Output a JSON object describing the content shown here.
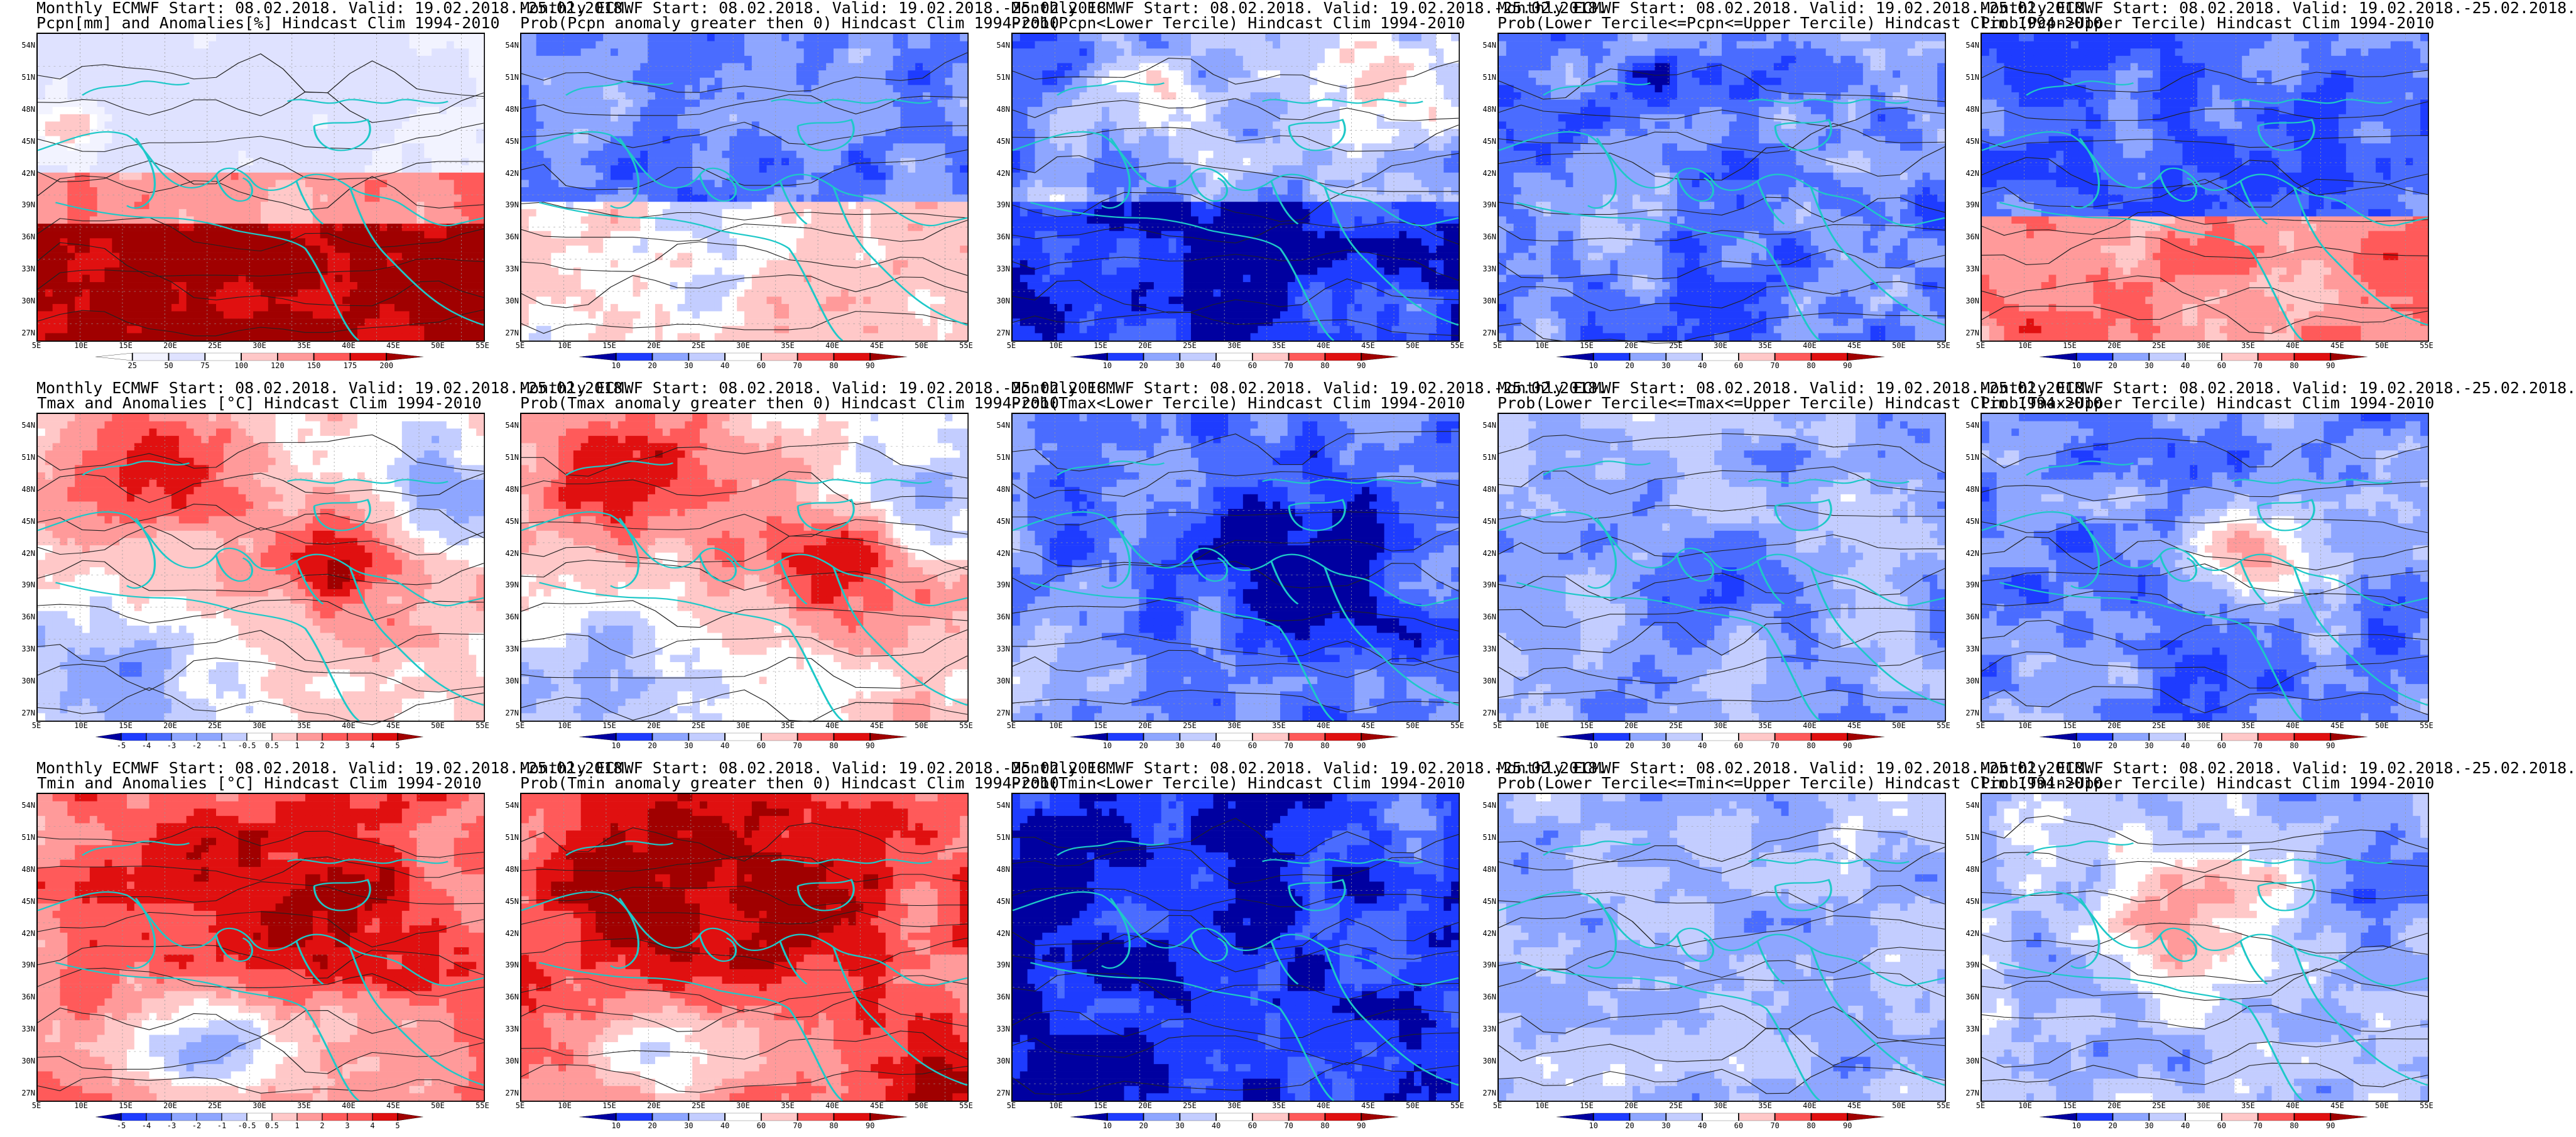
{
  "header_line": "Monthly ECMWF Start: 08.02.2018. Valid: 19.02.2018.-25.02.2018.",
  "lat_labels": [
    "54N",
    "51N",
    "48N",
    "45N",
    "42N",
    "39N",
    "36N",
    "33N",
    "30N",
    "27N"
  ],
  "lon_labels": [
    "5E",
    "10E",
    "15E",
    "20E",
    "25E",
    "30E",
    "35E",
    "40E",
    "45E",
    "50E",
    "55E"
  ],
  "colors": {
    "coast": "#1ec8c8",
    "contour": "#222222",
    "diverging": [
      "#0000a0",
      "#1e3cff",
      "#4a6cff",
      "#8ea6ff",
      "#c3cdff",
      "#ffffff",
      "#ffc8c8",
      "#ff9a9a",
      "#ff5a5a",
      "#e01010",
      "#a00000"
    ]
  },
  "panels": [
    {
      "id": "p11",
      "subtitle": "Pcpn[mm] and Anomalies[%] Hindcast Clim 1994-2010",
      "field": "pcpn",
      "palette": "pcpn",
      "colorbar": [
        "25",
        "50",
        "75",
        "100",
        "120",
        "150",
        "175",
        "200"
      ]
    },
    {
      "id": "p12",
      "subtitle": "Prob(Pcpn anomaly greater then 0) Hindcast Clim 1994-2010",
      "field": "prob",
      "palette": "prob",
      "colorbar": [
        "10",
        "20",
        "30",
        "40",
        "60",
        "70",
        "80",
        "90"
      ]
    },
    {
      "id": "p13",
      "subtitle": "Prob(Pcpn<Lower Tercile) Hindcast Clim 1994-2010",
      "field": "lowp",
      "palette": "prob",
      "colorbar": [
        "10",
        "20",
        "30",
        "40",
        "60",
        "70",
        "80",
        "90"
      ]
    },
    {
      "id": "p14",
      "subtitle": "Prob(Lower Tercile<=Pcpn<=Upper Tercile) Hindcast Clim 1994-2010",
      "field": "mid",
      "palette": "prob",
      "colorbar": [
        "10",
        "20",
        "30",
        "40",
        "60",
        "70",
        "80",
        "90"
      ]
    },
    {
      "id": "p15",
      "subtitle": "Prob(Pcpn>Upper Tercile) Hindcast Clim 1994-2010",
      "field": "highp",
      "palette": "prob",
      "colorbar": [
        "10",
        "20",
        "30",
        "40",
        "60",
        "70",
        "80",
        "90"
      ]
    },
    {
      "id": "p21",
      "subtitle": "Tmax and Anomalies [°C] Hindcast Clim 1994-2010",
      "field": "warm",
      "palette": "anom",
      "colorbar": [
        "-5",
        "-4",
        "-3",
        "-2",
        "-1",
        "-0.5",
        "0.5",
        "1",
        "2",
        "3",
        "4",
        "5"
      ]
    },
    {
      "id": "p22",
      "subtitle": "Prob(Tmax anomaly greater then 0) Hindcast Clim 1994-2010",
      "field": "warm",
      "palette": "prob",
      "colorbar": [
        "10",
        "20",
        "30",
        "40",
        "60",
        "70",
        "80",
        "90"
      ]
    },
    {
      "id": "p23",
      "subtitle": "Prob(Tmax<Lower Tercile) Hindcast Clim 1994-2010",
      "field": "cold",
      "palette": "prob",
      "colorbar": [
        "10",
        "20",
        "30",
        "40",
        "60",
        "70",
        "80",
        "90"
      ]
    },
    {
      "id": "p24",
      "subtitle": "Prob(Lower Tercile<=Tmax<=Upper Tercile) Hindcast Clim 1994-2010",
      "field": "mid2",
      "palette": "prob",
      "colorbar": [
        "10",
        "20",
        "30",
        "40",
        "60",
        "70",
        "80",
        "90"
      ]
    },
    {
      "id": "p25",
      "subtitle": "Prob(Tmax>Upper Tercile) Hindcast Clim 1994-2010",
      "field": "upper",
      "palette": "prob",
      "colorbar": [
        "10",
        "20",
        "30",
        "40",
        "60",
        "70",
        "80",
        "90"
      ]
    },
    {
      "id": "p31",
      "subtitle": "Tmin and Anomalies [°C] Hindcast Clim 1994-2010",
      "field": "warm2",
      "palette": "anom",
      "colorbar": [
        "-5",
        "-4",
        "-3",
        "-2",
        "-1",
        "-0.5",
        "0.5",
        "1",
        "2",
        "3",
        "4",
        "5"
      ]
    },
    {
      "id": "p32",
      "subtitle": "Prob(Tmin anomaly greater then 0) Hindcast Clim 1994-2010",
      "field": "warm3",
      "palette": "prob",
      "colorbar": [
        "10",
        "20",
        "30",
        "40",
        "60",
        "70",
        "80",
        "90"
      ]
    },
    {
      "id": "p33",
      "subtitle": "Prob(Tmin<Lower Tercile) Hindcast Clim 1994-2010",
      "field": "cold2",
      "palette": "prob",
      "colorbar": [
        "10",
        "20",
        "30",
        "40",
        "60",
        "70",
        "80",
        "90"
      ]
    },
    {
      "id": "p34",
      "subtitle": "Prob(Lower Tercile<=Tmin<=Upper Tercile) Hindcast Clim 1994-2010",
      "field": "mid3",
      "palette": "prob",
      "colorbar": [
        "10",
        "20",
        "30",
        "40",
        "60",
        "70",
        "80",
        "90"
      ]
    },
    {
      "id": "p35",
      "subtitle": "Prob(Tmin>Upper Tercile) Hindcast Clim 1994-2010",
      "field": "upper2",
      "palette": "prob",
      "colorbar": [
        "10",
        "20",
        "30",
        "40",
        "60",
        "70",
        "80",
        "90"
      ]
    }
  ]
}
